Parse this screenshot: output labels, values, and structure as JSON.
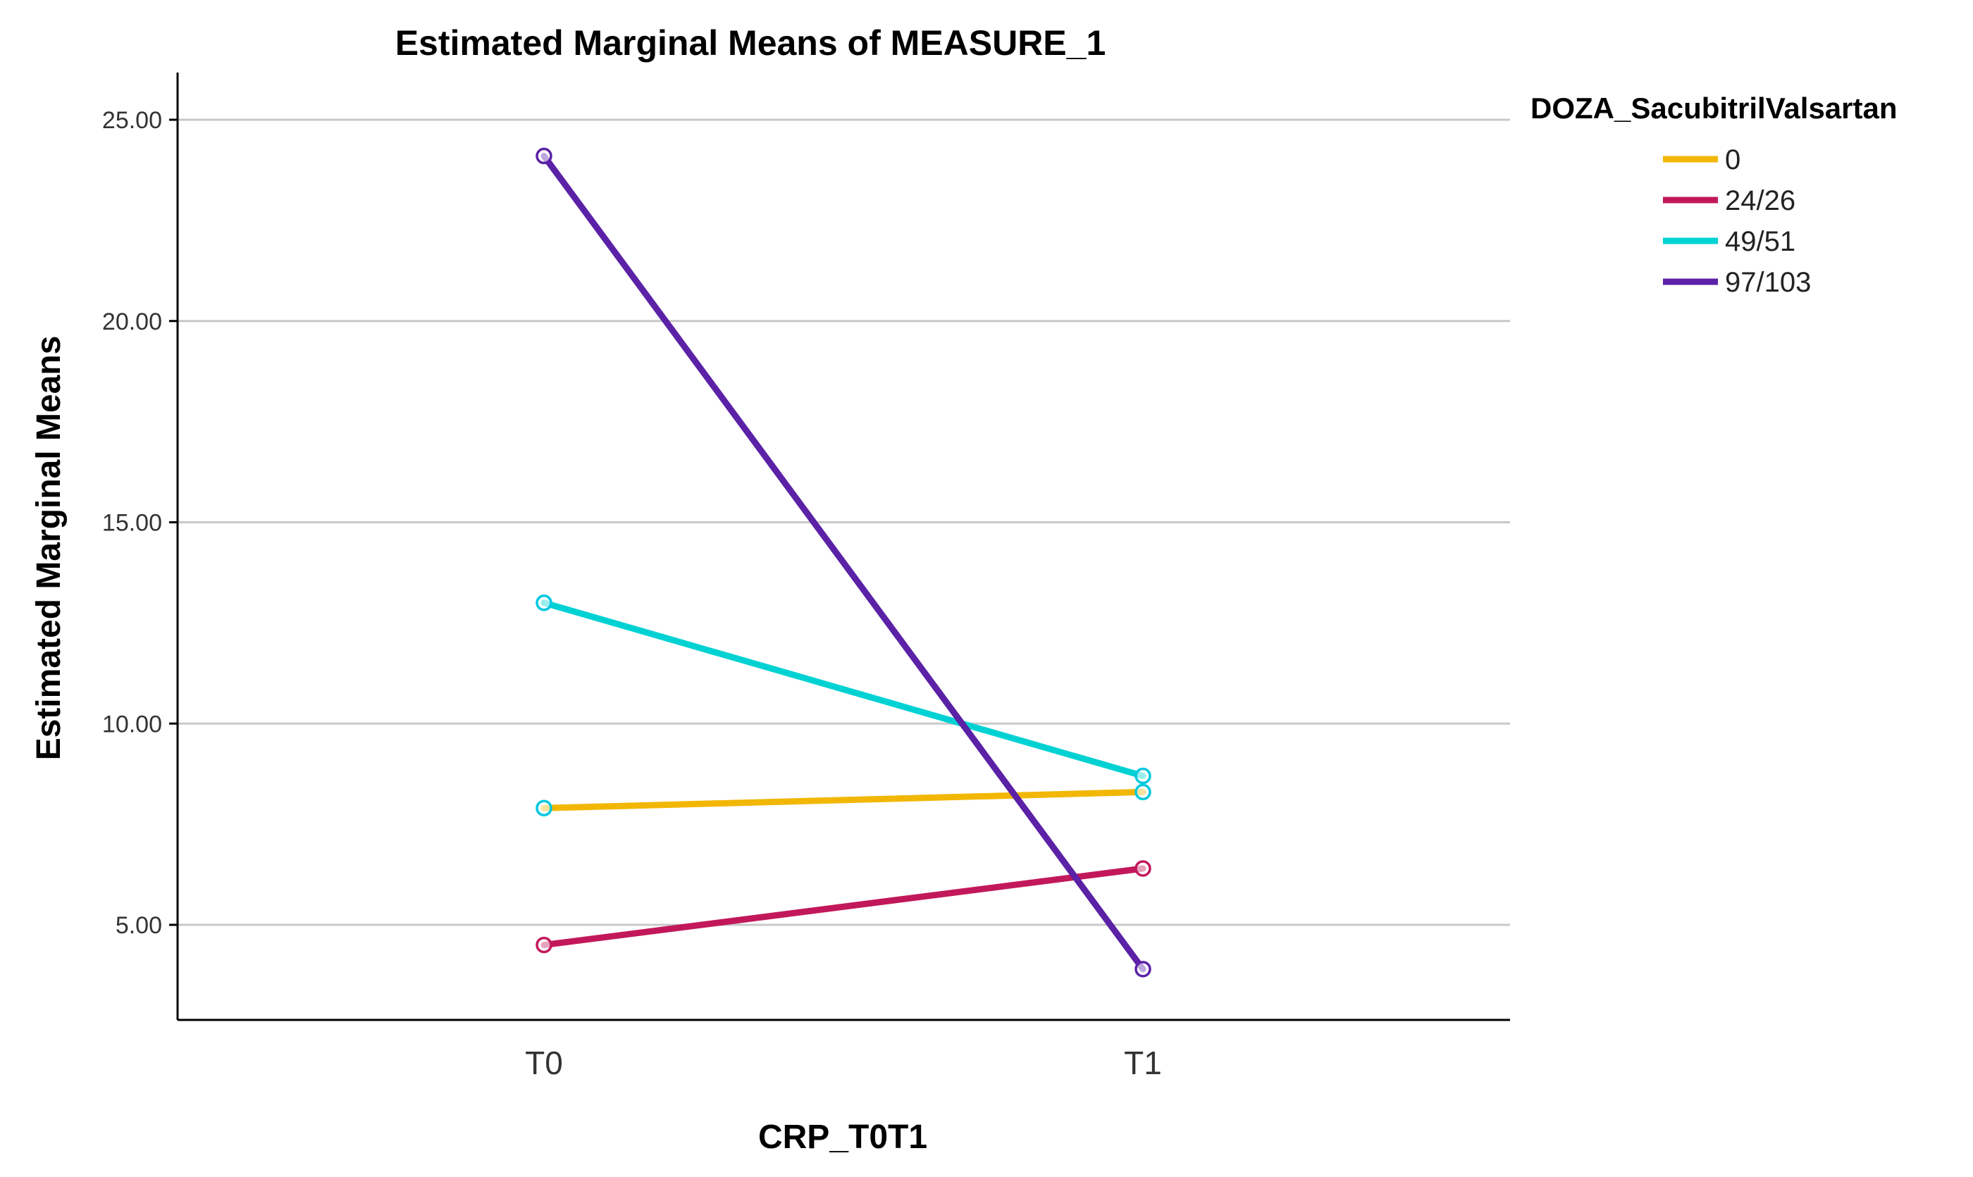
{
  "chart_data": {
    "type": "line",
    "title": "Estimated Marginal Means of MEASURE_1",
    "xlabel": "CRP_T0T1",
    "ylabel": "Estimated Marginal Means",
    "categories": [
      "T0",
      "T1"
    ],
    "ylim": [
      2.0,
      26.0
    ],
    "yticks": [
      5,
      10,
      15,
      20,
      25
    ],
    "ytick_labels": [
      "5.00",
      "10.00",
      "15.00",
      "20.00",
      "25.00"
    ],
    "grid": true,
    "legend": {
      "title": "DOZA_SacubitrilValsartan",
      "position": "top-right"
    },
    "series": [
      {
        "name": "0",
        "color": "#f2b705",
        "values": [
          7.9,
          8.3
        ]
      },
      {
        "name": "24/26",
        "color": "#c2185b",
        "values": [
          4.5,
          6.4
        ]
      },
      {
        "name": "49/51",
        "color": "#00d2d3",
        "values": [
          13.0,
          8.7
        ]
      },
      {
        "name": "97/103",
        "color": "#5b21a6",
        "values": [
          24.1,
          3.9
        ]
      }
    ],
    "marker_color": "#00c8e0"
  }
}
